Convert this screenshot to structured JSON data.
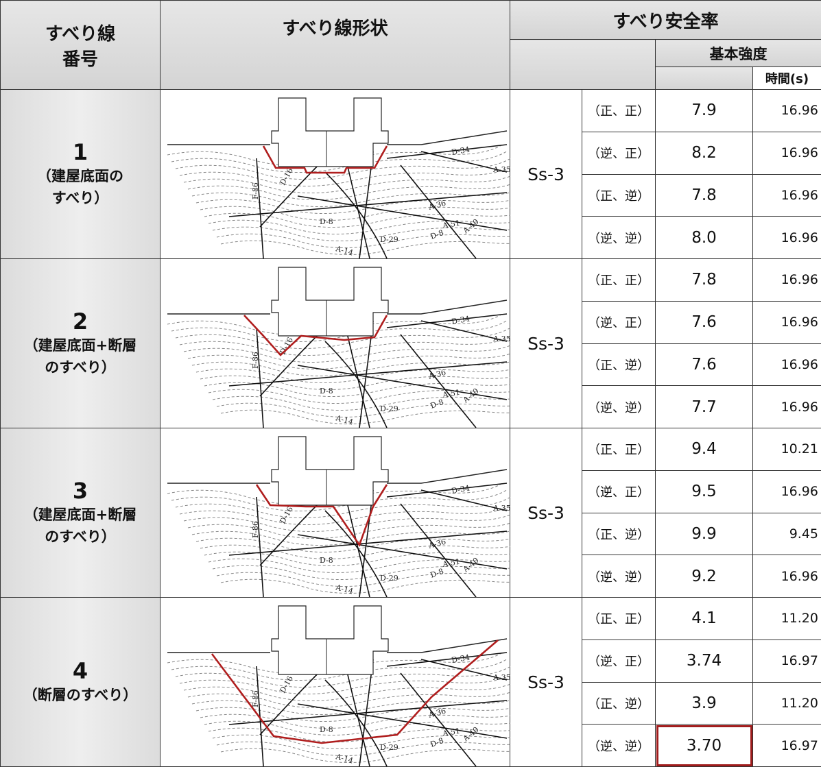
{
  "header": {
    "slip_no": [
      "すべり線",
      "番号"
    ],
    "shape": "すべり線形状",
    "safety_factor": "すべり安全率",
    "basic_strength": "基本強度",
    "time": "時間(s)"
  },
  "fault_labels": [
    "F-86",
    "D-16",
    "D-8",
    "A-14",
    "D-29",
    "A-36",
    "A-51",
    "A-40",
    "A-35",
    "D-34",
    "D-8"
  ],
  "rows": [
    {
      "no": "1",
      "desc": [
        "（建屋底面の",
        "すべり）"
      ],
      "wave": "Ss-3",
      "cases": [
        {
          "phase": "（正、正）",
          "factor": "7.9",
          "time": "16.96"
        },
        {
          "phase": "（逆、正）",
          "factor": "8.2",
          "time": "16.96"
        },
        {
          "phase": "（正、逆）",
          "factor": "7.8",
          "time": "16.96"
        },
        {
          "phase": "（逆、逆）",
          "factor": "8.0",
          "time": "16.96"
        }
      ]
    },
    {
      "no": "2",
      "desc": [
        "（建屋底面+断層",
        "のすべり）"
      ],
      "wave": "Ss-3",
      "cases": [
        {
          "phase": "（正、正）",
          "factor": "7.8",
          "time": "16.96"
        },
        {
          "phase": "（逆、正）",
          "factor": "7.6",
          "time": "16.96"
        },
        {
          "phase": "（正、逆）",
          "factor": "7.6",
          "time": "16.96"
        },
        {
          "phase": "（逆、逆）",
          "factor": "7.7",
          "time": "16.96"
        }
      ]
    },
    {
      "no": "3",
      "desc": [
        "（建屋底面+断層",
        "のすべり）"
      ],
      "wave": "Ss-3",
      "cases": [
        {
          "phase": "（正、正）",
          "factor": "9.4",
          "time": "10.21"
        },
        {
          "phase": "（逆、正）",
          "factor": "9.5",
          "time": "16.96"
        },
        {
          "phase": "（正、逆）",
          "factor": "9.9",
          "time": "9.45"
        },
        {
          "phase": "（逆、逆）",
          "factor": "9.2",
          "time": "16.96"
        }
      ]
    },
    {
      "no": "4",
      "desc": [
        "（断層のすべり）"
      ],
      "wave": "Ss-3",
      "cases": [
        {
          "phase": "（正、正）",
          "factor": "4.1",
          "time": "11.20"
        },
        {
          "phase": "（逆、正）",
          "factor": "3.74",
          "time": "16.97"
        },
        {
          "phase": "（正、逆）",
          "factor": "3.9",
          "time": "11.20"
        },
        {
          "phase": "（逆、逆）",
          "factor": "3.70",
          "time": "16.97"
        }
      ]
    }
  ]
}
